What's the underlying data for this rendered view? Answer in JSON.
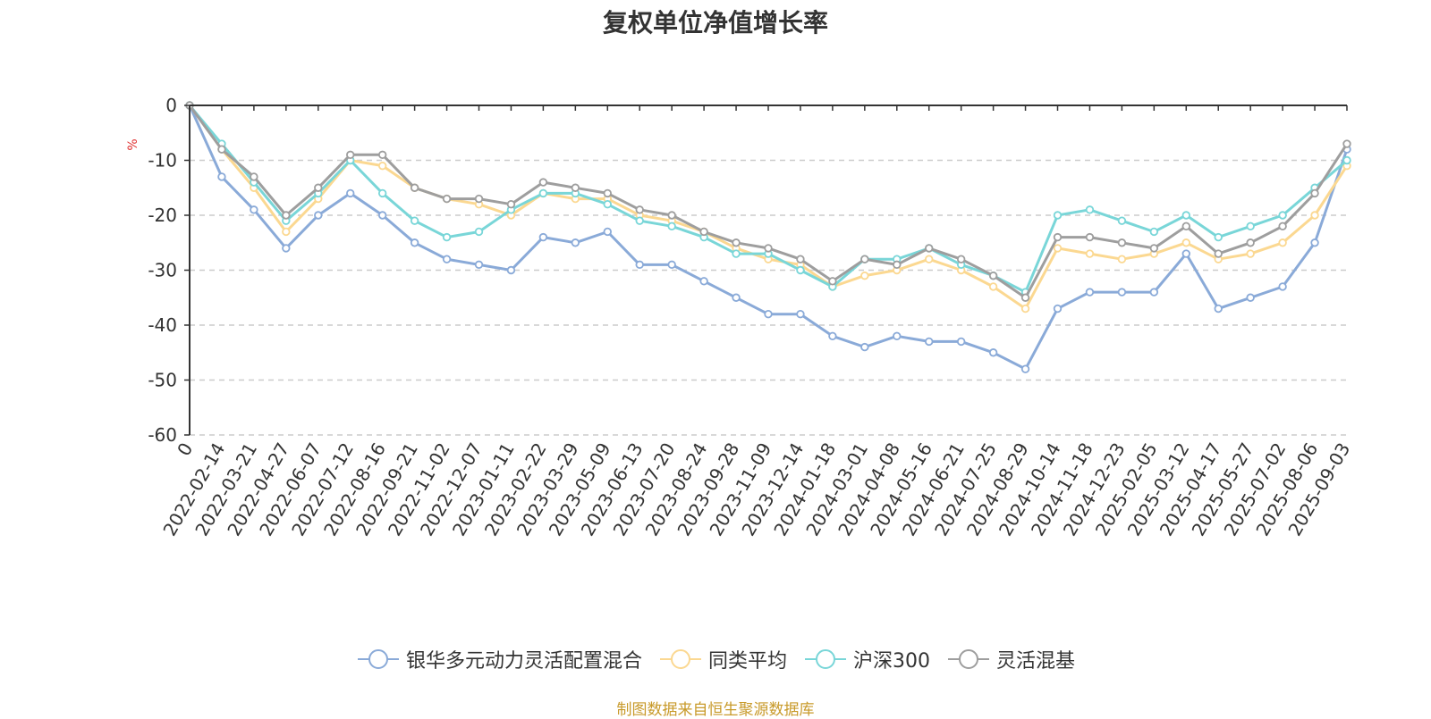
{
  "chart_data": {
    "type": "line",
    "title": "复权单位净值增长率",
    "ylabel": "%",
    "xlabel": "",
    "ylim": [
      -60,
      0
    ],
    "yticks": [
      0,
      -10,
      -20,
      -30,
      -40,
      -50,
      -60
    ],
    "grid": true,
    "legend_position": "bottom",
    "x": [
      "0",
      "2022-02-14",
      "2022-03-21",
      "2022-04-27",
      "2022-06-07",
      "2022-07-12",
      "2022-08-16",
      "2022-09-21",
      "2022-11-02",
      "2022-12-07",
      "2023-01-11",
      "2023-02-22",
      "2023-03-29",
      "2023-05-09",
      "2023-06-13",
      "2023-07-20",
      "2023-08-24",
      "2023-09-28",
      "2023-11-09",
      "2023-12-14",
      "2024-01-18",
      "2024-03-01",
      "2024-04-08",
      "2024-05-16",
      "2024-06-21",
      "2024-07-25",
      "2024-08-29",
      "2024-10-14",
      "2024-11-18",
      "2024-12-23",
      "2025-02-05",
      "2025-03-12",
      "2025-04-17",
      "2025-05-27",
      "2025-07-02",
      "2025-08-06",
      "2025-09-03"
    ],
    "series": [
      {
        "name": "银华多元动力灵活配置混合",
        "color": "#8aaad8",
        "values": [
          0,
          -13,
          -19,
          -26,
          -20,
          -16,
          -20,
          -25,
          -28,
          -29,
          -30,
          -24,
          -25,
          -23,
          -29,
          -29,
          -32,
          -35,
          -38,
          -38,
          -42,
          -44,
          -42,
          -43,
          -43,
          -45,
          -48,
          -37,
          -34,
          -34,
          -34,
          -27,
          -37,
          -35,
          -33,
          -25,
          -8
        ]
      },
      {
        "name": "同类平均",
        "color": "#fbd891",
        "values": [
          0,
          -8,
          -15,
          -23,
          -17,
          -10,
          -11,
          -15,
          -17,
          -18,
          -20,
          -16,
          -17,
          -17,
          -20,
          -21,
          -23,
          -26,
          -28,
          -29,
          -33,
          -31,
          -30,
          -28,
          -30,
          -33,
          -37,
          -26,
          -27,
          -28,
          -27,
          -25,
          -28,
          -27,
          -25,
          -20,
          -11
        ]
      },
      {
        "name": "沪深300",
        "color": "#79d6d8",
        "values": [
          0,
          -7,
          -14,
          -21,
          -16,
          -10,
          -16,
          -21,
          -24,
          -23,
          -19,
          -16,
          -16,
          -18,
          -21,
          -22,
          -24,
          -27,
          -27,
          -30,
          -33,
          -28,
          -28,
          -26,
          -29,
          -31,
          -34,
          -20,
          -19,
          -21,
          -23,
          -20,
          -24,
          -22,
          -20,
          -15,
          -10
        ]
      },
      {
        "name": "灵活混基",
        "color": "#9e9e9e",
        "values": [
          0,
          -8,
          -13,
          -20,
          -15,
          -9,
          -9,
          -15,
          -17,
          -17,
          -18,
          -14,
          -15,
          -16,
          -19,
          -20,
          -23,
          -25,
          -26,
          -28,
          -32,
          -28,
          -29,
          -26,
          -28,
          -31,
          -35,
          -24,
          -24,
          -25,
          -26,
          -22,
          -27,
          -25,
          -22,
          -16,
          -7
        ]
      }
    ]
  },
  "source_note": "制图数据来自恒生聚源数据库"
}
